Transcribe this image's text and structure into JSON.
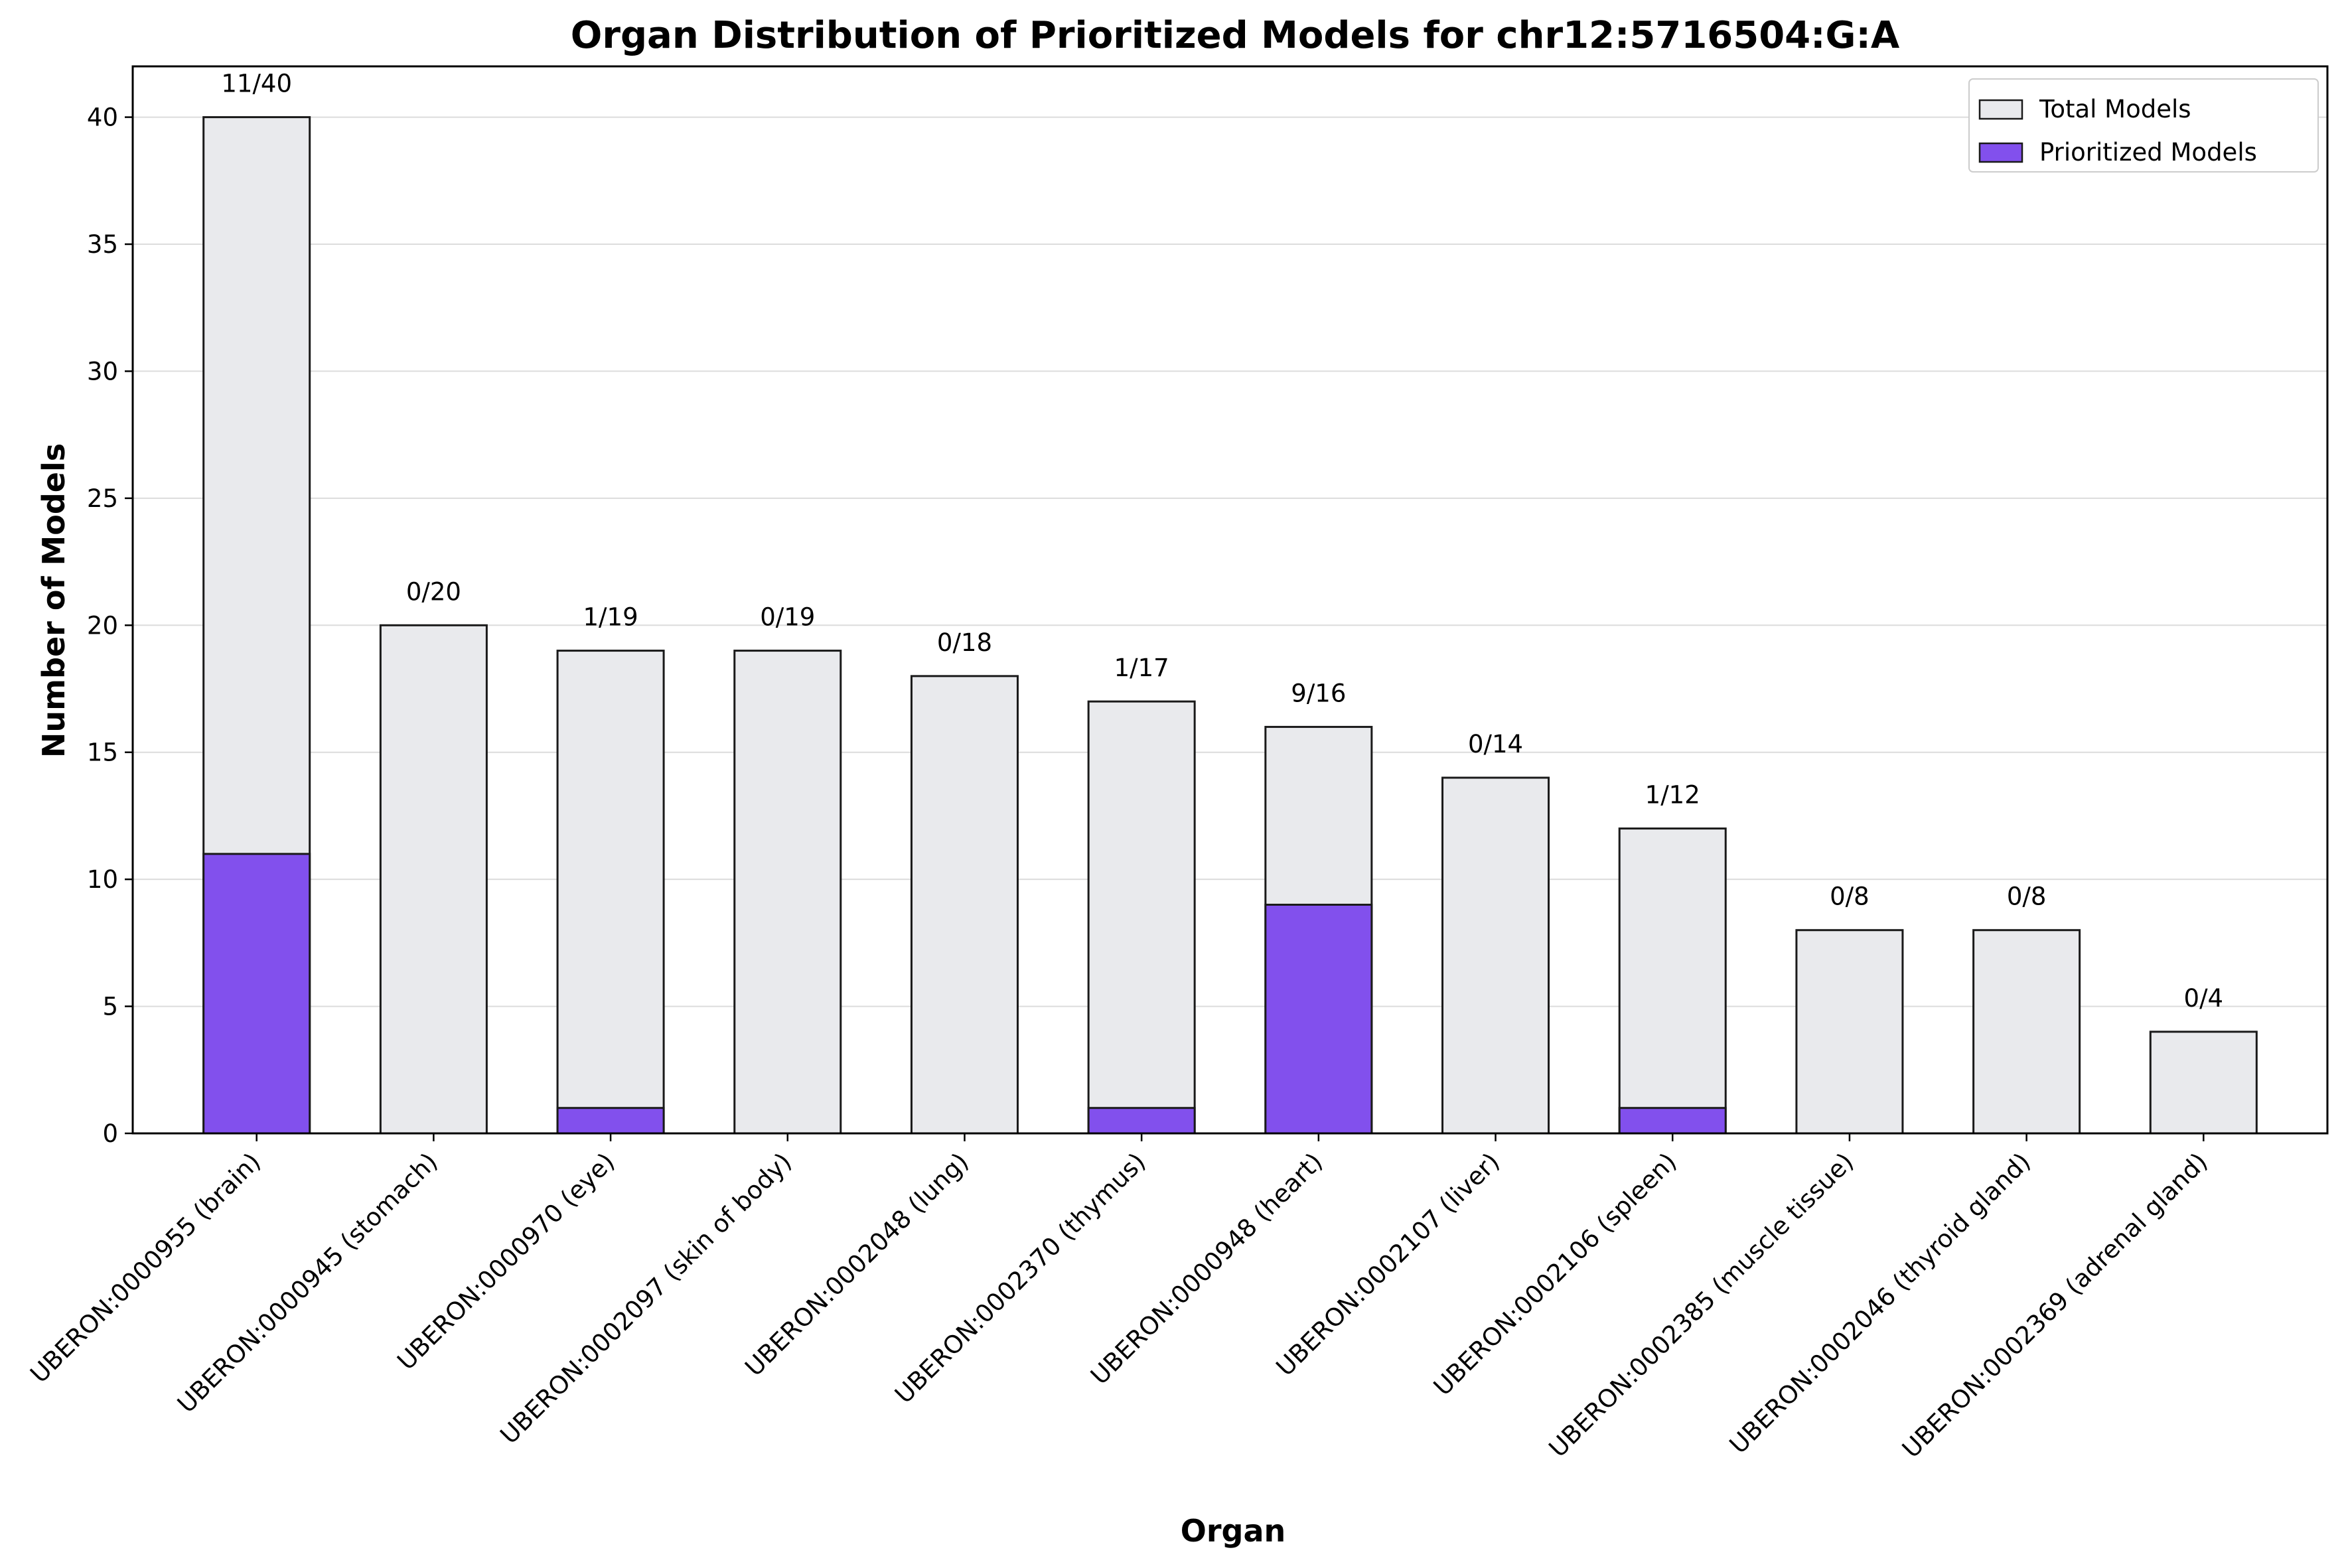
{
  "chart_data": {
    "type": "bar",
    "stacking": "overlay",
    "title": "Organ Distribution of Prioritized Models for chr12:5716504:G:A",
    "xlabel": "Organ",
    "ylabel": "Number of Models",
    "ylim": [
      0,
      42
    ],
    "yticks": [
      0,
      5,
      10,
      15,
      20,
      25,
      30,
      35,
      40
    ],
    "grid": "y",
    "legend_position": "top-right",
    "categories": [
      "UBERON:0000955 (brain)",
      "UBERON:0000945 (stomach)",
      "UBERON:0000970 (eye)",
      "UBERON:0002097 (skin of body)",
      "UBERON:0002048 (lung)",
      "UBERON:0002370 (thymus)",
      "UBERON:0000948 (heart)",
      "UBERON:0002107 (liver)",
      "UBERON:0002106 (spleen)",
      "UBERON:0002385 (muscle tissue)",
      "UBERON:0002046 (thyroid gland)",
      "UBERON:0002369 (adrenal gland)"
    ],
    "series": [
      {
        "name": "Total Models",
        "color": "#e9eaed",
        "values": [
          40,
          20,
          19,
          19,
          18,
          17,
          16,
          14,
          12,
          8,
          8,
          4
        ]
      },
      {
        "name": "Prioritized Models",
        "color": "#8250ed",
        "values": [
          11,
          0,
          1,
          0,
          0,
          1,
          9,
          0,
          1,
          0,
          0,
          0
        ]
      }
    ],
    "data_labels": [
      "11/40",
      "0/20",
      "1/19",
      "0/19",
      "0/18",
      "1/17",
      "9/16",
      "0/14",
      "1/12",
      "0/8",
      "0/8",
      "0/4"
    ]
  }
}
